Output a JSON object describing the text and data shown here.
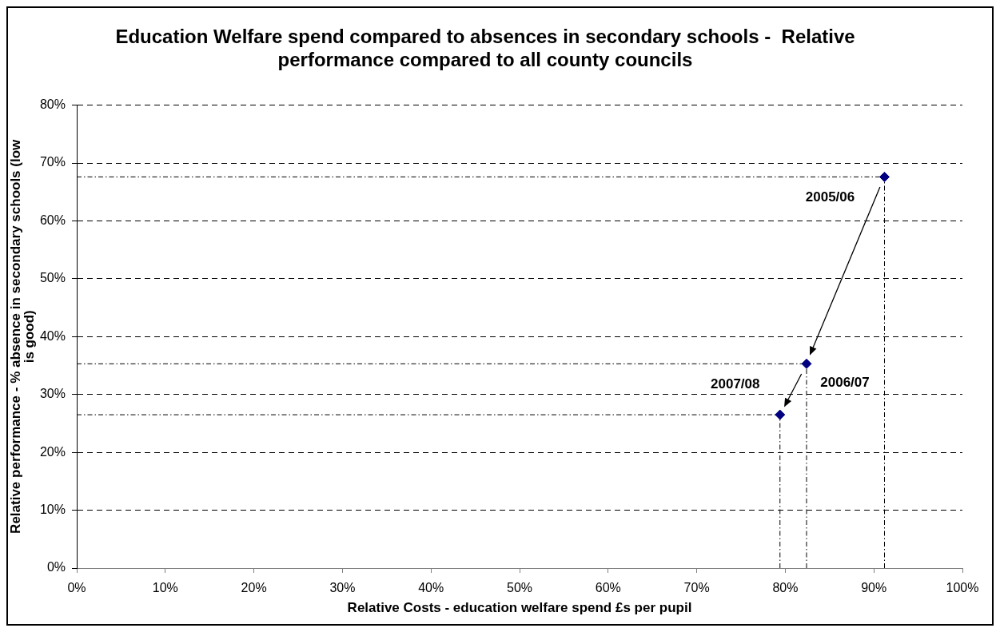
{
  "chart_data": {
    "type": "scatter",
    "title": "Education Welfare spend compared to absences in secondary schools -  Relative performance compared to all county councils",
    "xlabel": "Relative Costs - education welfare spend £s per pupil",
    "ylabel": "Relative performance - % absence in secondary schools (low is good)",
    "x": [
      91.2,
      82.4,
      79.4
    ],
    "values": [
      67.6,
      35.3,
      26.5
    ],
    "color": "#000080",
    "marker": "diamond",
    "errors": [
      [
        0,
        67.6
      ],
      [
        0,
        35.3
      ],
      [
        0,
        26.5
      ]
    ],
    "xerrors": [
      [
        0,
        91.2
      ],
      [
        0,
        82.4
      ],
      [
        0,
        79.4
      ]
    ],
    "xlim": [
      0,
      100
    ],
    "ylim": [
      0,
      80
    ],
    "xticks": [
      {
        "value": 0,
        "label": "0%"
      },
      {
        "value": 10,
        "label": "10%"
      },
      {
        "value": 20,
        "label": "20%"
      },
      {
        "value": 30,
        "label": "30%"
      },
      {
        "value": 40,
        "label": "40%"
      },
      {
        "value": 50,
        "label": "50%"
      },
      {
        "value": 60,
        "label": "60%"
      },
      {
        "value": 70,
        "label": "70%"
      },
      {
        "value": 80,
        "label": "80%"
      },
      {
        "value": 90,
        "label": "90%"
      },
      {
        "value": 100,
        "label": "100%"
      }
    ],
    "yticks": [
      {
        "value": 0,
        "label": "0%"
      },
      {
        "value": 10,
        "label": "10%"
      },
      {
        "value": 20,
        "label": "20%"
      },
      {
        "value": 30,
        "label": "30%"
      },
      {
        "value": 40,
        "label": "40%"
      },
      {
        "value": 50,
        "label": "50%"
      },
      {
        "value": 60,
        "label": "60%"
      },
      {
        "value": 70,
        "label": "70%"
      },
      {
        "value": 80,
        "label": "80%"
      }
    ],
    "grid": "y",
    "annotations": [
      {
        "text": "2005/06",
        "x": 91.2,
        "y": 67.6
      },
      {
        "text": "2006/07",
        "x": 82.4,
        "y": 35.3
      },
      {
        "text": "2007/08",
        "x": 79.4,
        "y": 26.5
      }
    ]
  }
}
